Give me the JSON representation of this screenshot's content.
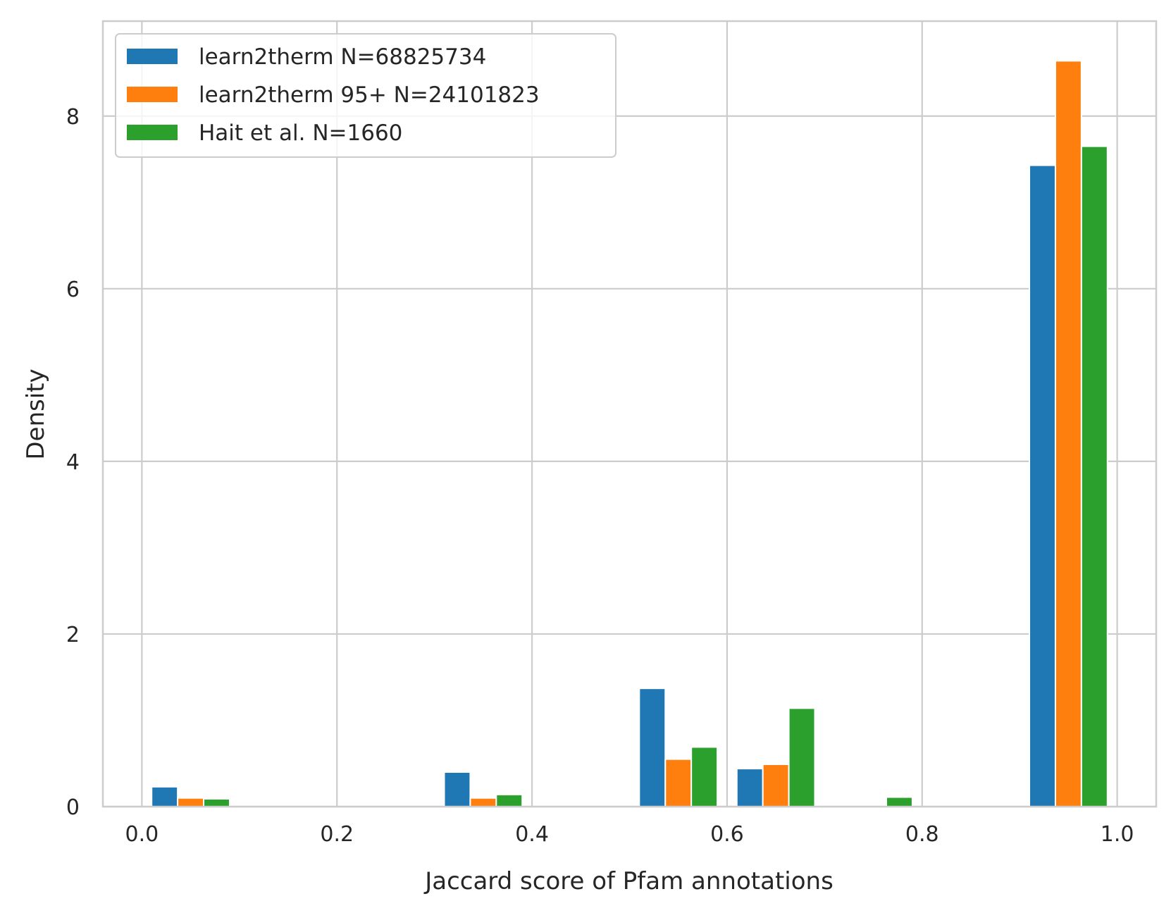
{
  "chart_data": {
    "type": "bar",
    "xlabel": "Jaccard score of Pfam annotations",
    "ylabel": "Density",
    "xlim": [
      -0.04,
      1.04
    ],
    "ylim": [
      0,
      9.1
    ],
    "xticks": [
      0.0,
      0.2,
      0.4,
      0.6,
      0.8,
      1.0
    ],
    "xtick_labels": [
      "0.0",
      "0.2",
      "0.4",
      "0.6",
      "0.8",
      "1.0"
    ],
    "yticks": [
      0,
      2,
      4,
      6,
      8
    ],
    "ytick_labels": [
      "0",
      "2",
      "4",
      "6",
      "8"
    ],
    "grid": true,
    "legend_position": "top-left",
    "bins": [
      [
        0.0,
        0.1
      ],
      [
        0.1,
        0.2
      ],
      [
        0.2,
        0.3
      ],
      [
        0.3,
        0.4
      ],
      [
        0.4,
        0.5
      ],
      [
        0.5,
        0.6
      ],
      [
        0.6,
        0.7
      ],
      [
        0.7,
        0.8
      ],
      [
        0.8,
        0.9
      ],
      [
        0.9,
        1.0
      ]
    ],
    "series": [
      {
        "name": "learn2therm N=68825734",
        "color": "#1f77b4",
        "values": [
          0.23,
          0,
          0,
          0.4,
          0,
          1.37,
          0.44,
          0,
          0,
          7.43
        ]
      },
      {
        "name": "learn2therm 95+ N=24101823",
        "color": "#ff7f0e",
        "values": [
          0.1,
          0,
          0,
          0.1,
          0,
          0.55,
          0.49,
          0,
          0,
          8.64
        ]
      },
      {
        "name": "Hait et al. N=1660",
        "color": "#2ca02c",
        "values": [
          0.09,
          0,
          0,
          0.14,
          0,
          0.69,
          1.14,
          0.11,
          0,
          7.65
        ]
      }
    ]
  }
}
